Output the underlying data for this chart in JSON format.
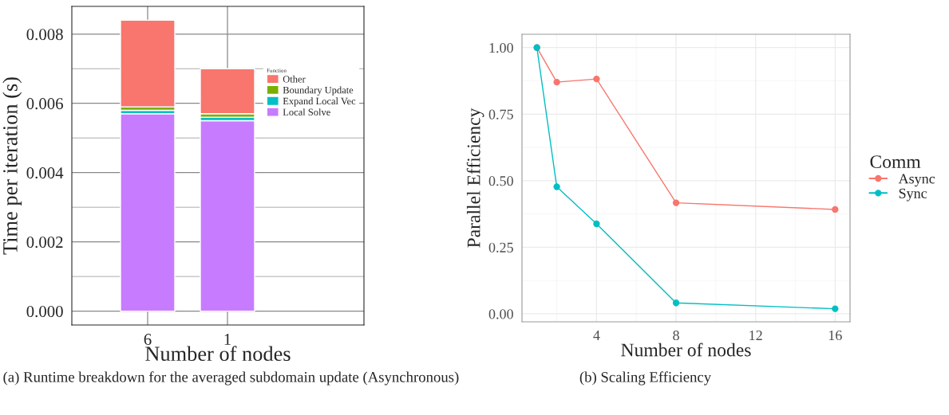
{
  "chart_data": [
    {
      "type": "bar",
      "stacked": true,
      "xlabel": "Number of nodes",
      "ylabel": "Time per iteration (s)",
      "categories": [
        "6",
        "1"
      ],
      "series": [
        {
          "name": "Local Solve",
          "color": "#c77cff",
          "values": [
            0.0057,
            0.0055
          ]
        },
        {
          "name": "Expand Local Vec",
          "color": "#00bfc4",
          "values": [
            0.0001,
            0.0001
          ]
        },
        {
          "name": "Boundary Update",
          "color": "#7cae00",
          "values": [
            0.0001,
            0.0001
          ]
        },
        {
          "name": "Other",
          "color": "#f8766d",
          "values": [
            0.0025,
            0.0013
          ]
        }
      ],
      "ylim": [
        -0.0004,
        0.0088
      ],
      "yticks": [
        {
          "value": 0,
          "label": "0.000"
        },
        {
          "value": 0.002,
          "label": "0.002"
        },
        {
          "value": 0.004,
          "label": "0.004"
        },
        {
          "value": 0.006,
          "label": "0.006"
        },
        {
          "value": 0.008,
          "label": "0.008"
        }
      ],
      "legend_title": "Function",
      "legend": "right",
      "grid": true,
      "annotations": [
        "(a) Runtime breakdown for the averaged subdomain update (Asynchronous)"
      ]
    },
    {
      "type": "line",
      "xlabel": "Number of nodes",
      "ylabel": "Parallel Efficiency",
      "x": [
        1,
        2,
        4,
        8,
        16
      ],
      "series": [
        {
          "name": "Async",
          "color": "#f8766d",
          "values": [
            1.0,
            0.87,
            0.882,
            0.417,
            0.392
          ]
        },
        {
          "name": "Sync",
          "color": "#00bfc4",
          "values": [
            1.0,
            0.477,
            0.338,
            0.041,
            0.019
          ]
        }
      ],
      "xlim": [
        0.25,
        16.75
      ],
      "xticks": [
        4,
        8,
        12,
        16
      ],
      "ylim": [
        -0.03,
        1.05
      ],
      "yticks": [
        {
          "value": 0,
          "label": "0.00"
        },
        {
          "value": 0.25,
          "label": "0.25"
        },
        {
          "value": 0.5,
          "label": "0.50"
        },
        {
          "value": 0.75,
          "label": "0.75"
        },
        {
          "value": 1.0,
          "label": "1.00"
        }
      ],
      "legend_title": "Comm",
      "legend": "right",
      "grid": true,
      "marker": "circle",
      "line_style": "solid",
      "annotations": [
        "(b) Scaling Efficiency"
      ]
    }
  ]
}
